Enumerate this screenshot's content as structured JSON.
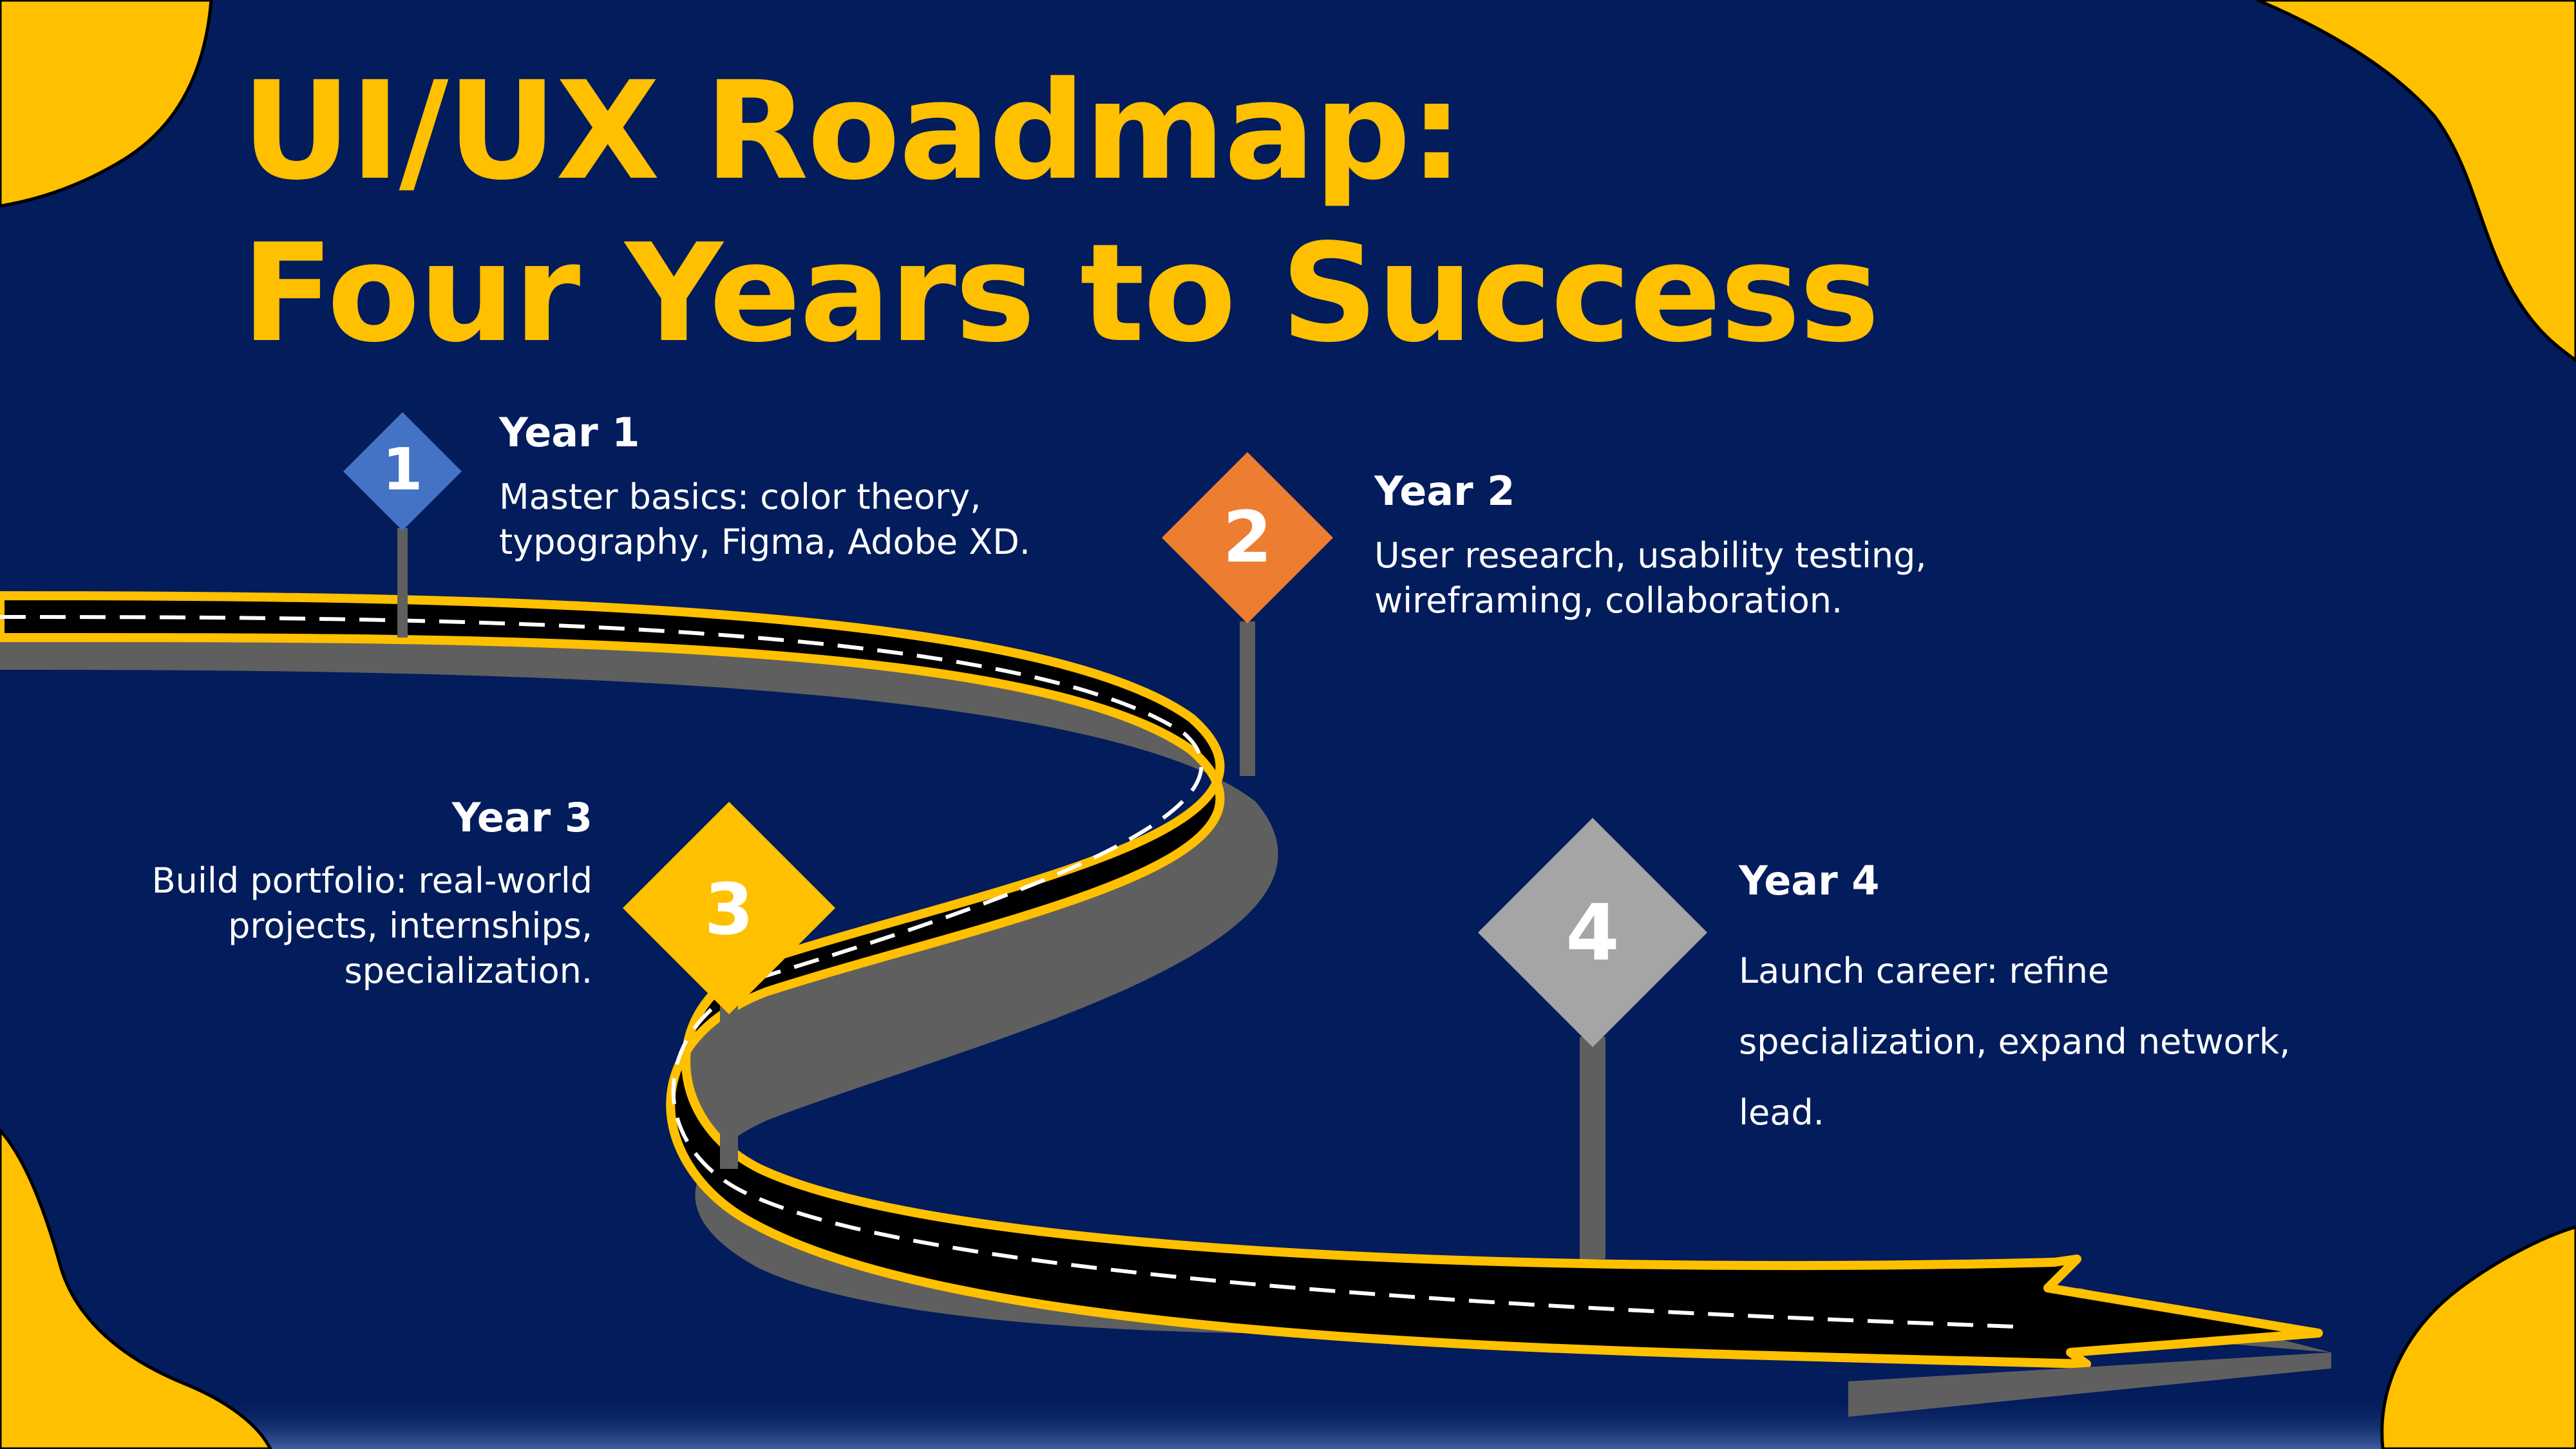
{
  "slide": {
    "title_line1": "UI/UX Roadmap:",
    "title_line2": "Four Years to Success"
  },
  "steps": [
    {
      "number": "1",
      "title": "Year 1",
      "description": "Master basics: color theory, typography, Figma, Adobe XD.",
      "color": "#4472C4"
    },
    {
      "number": "2",
      "title": "Year 2",
      "description": "User research, usability testing, wireframing, collaboration.",
      "color": "#ED7D31"
    },
    {
      "number": "3",
      "title": "Year 3",
      "description": "Build portfolio: real-world projects, internships, specialization.",
      "color": "#FFC000"
    },
    {
      "number": "4",
      "title": "Year 4",
      "description": "Launch career: refine specialization, expand network, lead.",
      "color": "#A5A5A5"
    }
  ],
  "colors": {
    "background": "#031C5C",
    "accent": "#FFC000",
    "road": "#000000",
    "road_edge": "#5F5F5F",
    "pole": "#5F5F5F"
  }
}
